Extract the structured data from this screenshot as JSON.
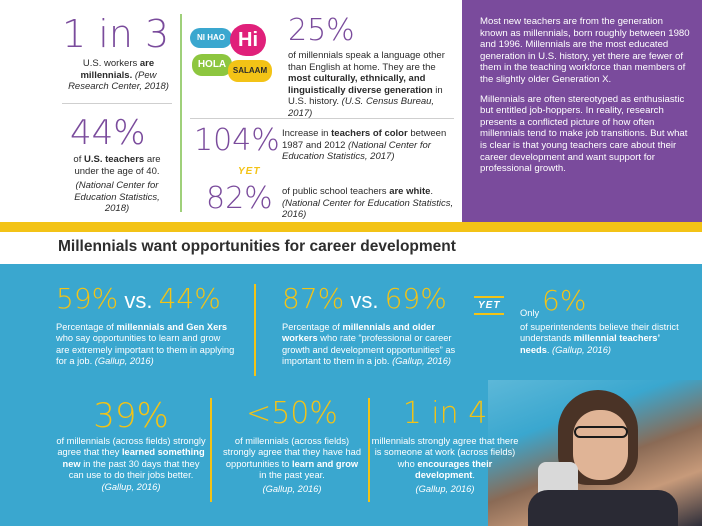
{
  "top_left": {
    "stat1_big": "1 in 3",
    "stat1_text_a": "U.S. workers ",
    "stat1_text_b": "are millennials.",
    "stat1_cite": "(Pew Research Center, 2018)",
    "stat2_big": "44%",
    "stat2_text_a": "of ",
    "stat2_text_b": "U.S. teachers",
    "stat2_text_c": " are under the age of 40.",
    "stat2_cite": "(National Center for Education Statistics, 2018)"
  },
  "top_middle": {
    "bubbles": [
      "NI HAO",
      "Hi",
      "HOLA",
      "SALAAM"
    ],
    "stat_big": "25%",
    "stat_text_a": "of millennials speak a language other than English at home. They are the ",
    "stat_text_b": "most culturally, ethnically, and linguistically diverse generation",
    "stat_text_c": " in U.S. history. ",
    "stat_cite": "(U.S. Census Bureau, 2017)",
    "stat2_big": "104%",
    "stat2_text_a": "Increase in ",
    "stat2_text_b": "teachers of color",
    "stat2_text_c": " between 1987 and 2012 ",
    "stat2_cite": "(National Center for Education Statistics, 2017)",
    "yet": "YET",
    "stat3_big": "82%",
    "stat3_text_a": "of public school teachers ",
    "stat3_text_b": "are white",
    "stat3_text_c": ". ",
    "stat3_cite": "(National Center for Education Statistics, 2016)"
  },
  "purple_panel": {
    "p1": "Most new teachers are from the generation known as millennials, born roughly between 1980 and 1996. Millennials are the most educated generation in U.S. history, yet there are fewer of them in the teaching workforce than members of the slightly older Generation X.",
    "p2": "Millennials are often stereotyped as enthusiastic but entitled job-hoppers. In reality, research presents a conflicted picture of how often millennials tend to make job transitions. But what is clear is that young teachers care about their career development and want support for professional growth."
  },
  "headline": "Millennials want opportunities for career development",
  "row1": {
    "s1_a": "59%",
    "s1_vs": " vs. ",
    "s1_b": "44%",
    "s1_text_a": "Percentage of ",
    "s1_text_b": "millennials and Gen Xers",
    "s1_text_c": " who say opportunities to learn and grow are extremely important to them in applying for a job. ",
    "s1_cite": "(Gallup, 2016)",
    "s2_a": "87%",
    "s2_vs": " vs. ",
    "s2_b": "69%",
    "s2_text_a": "Percentage of ",
    "s2_text_b": "millennials and older workers",
    "s2_text_c": " who rate “professional or career growth and development opportunities” as important to them in a job. ",
    "s2_cite": "(Gallup, 2016)",
    "yet": "YET",
    "s3_only": "Only",
    "s3_big": "6%",
    "s3_text_a": "of superintendents believe their district understands ",
    "s3_text_b": "millennial teachers’ needs",
    "s3_text_c": ". ",
    "s3_cite": "(Gallup, 2016)"
  },
  "row2": {
    "s1_big": "39%",
    "s1_text_a": "of millennials (across fields) strongly agree that they ",
    "s1_text_b": "learned something new",
    "s1_text_c": " in the past 30 days that they can use to do their jobs better. ",
    "s1_cite": "(Gallup, 2016)",
    "s2_big": "<50%",
    "s2_text_a": "of millennials (across fields) strongly agree that they have had opportunities to ",
    "s2_text_b": "learn and grow",
    "s2_text_c": " in the past year.",
    "s2_cite": "(Gallup, 2016)",
    "s3_big": "1 in 4",
    "s3_text_a": "millennials strongly agree that there is someone at work (across fields) who ",
    "s3_text_b": "encourages their development",
    "s3_text_c": ".",
    "s3_cite": "(Gallup, 2016)"
  }
}
